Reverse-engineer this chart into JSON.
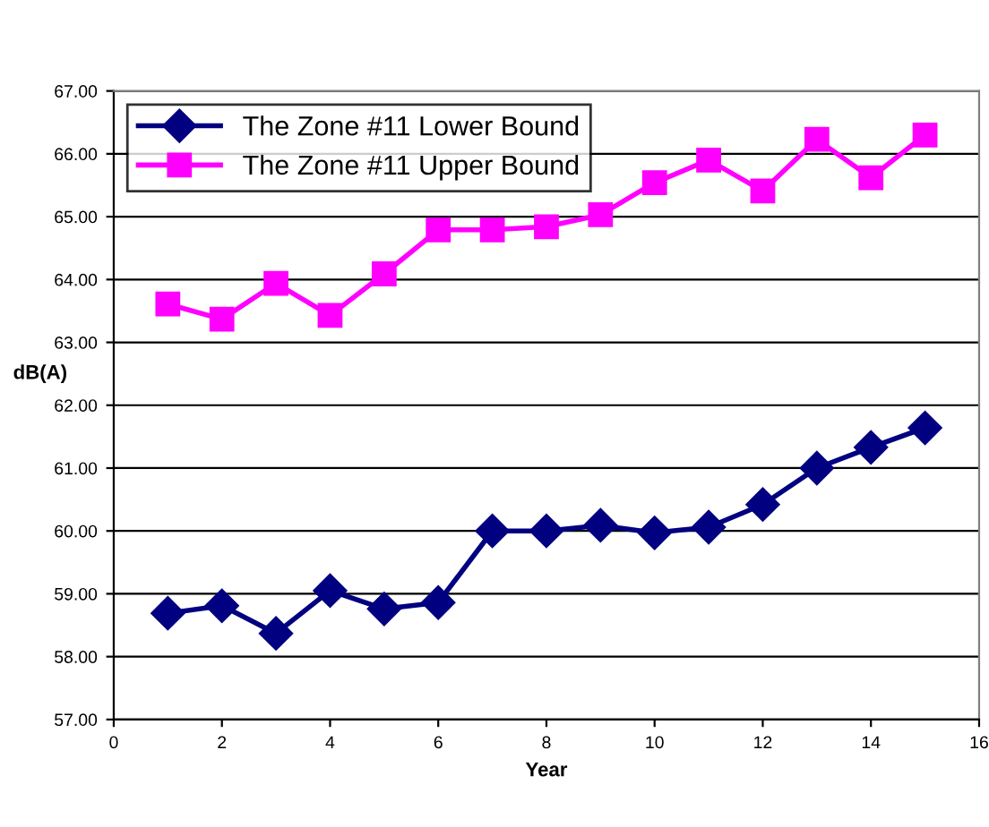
{
  "chart_data": {
    "type": "line",
    "xlabel": "Year",
    "ylabel": "dB(A)",
    "x": [
      1,
      2,
      3,
      4,
      5,
      6,
      7,
      8,
      9,
      10,
      11,
      12,
      13,
      14,
      15
    ],
    "series": [
      {
        "name": "The Zone #11 Lower Bound",
        "color": "#000080",
        "marker": "diamond",
        "values": [
          58.69,
          58.81,
          58.37,
          59.05,
          58.76,
          58.86,
          60.0,
          60.0,
          60.09,
          59.97,
          60.06,
          60.42,
          61.0,
          61.33,
          61.64
        ]
      },
      {
        "name": "The Zone #11 Upper Bound",
        "color": "#ff00ff",
        "marker": "square",
        "values": [
          63.61,
          63.37,
          63.94,
          63.43,
          64.09,
          64.79,
          64.79,
          64.84,
          65.03,
          65.54,
          65.9,
          65.41,
          66.23,
          65.62,
          66.3
        ]
      }
    ],
    "xlim": [
      0,
      16
    ],
    "xticks": [
      0,
      2,
      4,
      6,
      8,
      10,
      12,
      14,
      16
    ],
    "ylim": [
      57,
      67
    ],
    "yticks": [
      {
        "value": 57,
        "label": "57.00"
      },
      {
        "value": 58,
        "label": "58.00"
      },
      {
        "value": 59,
        "label": "59.00"
      },
      {
        "value": 60,
        "label": "60.00"
      },
      {
        "value": 61,
        "label": "61.00"
      },
      {
        "value": 62,
        "label": "62.00"
      },
      {
        "value": 63,
        "label": "63.00"
      },
      {
        "value": 64,
        "label": "64.00"
      },
      {
        "value": 65,
        "label": "65.00"
      },
      {
        "value": 66,
        "label": "66.00"
      },
      {
        "value": 67,
        "label": "67.00"
      }
    ],
    "grid": "y",
    "legend": "top left"
  }
}
